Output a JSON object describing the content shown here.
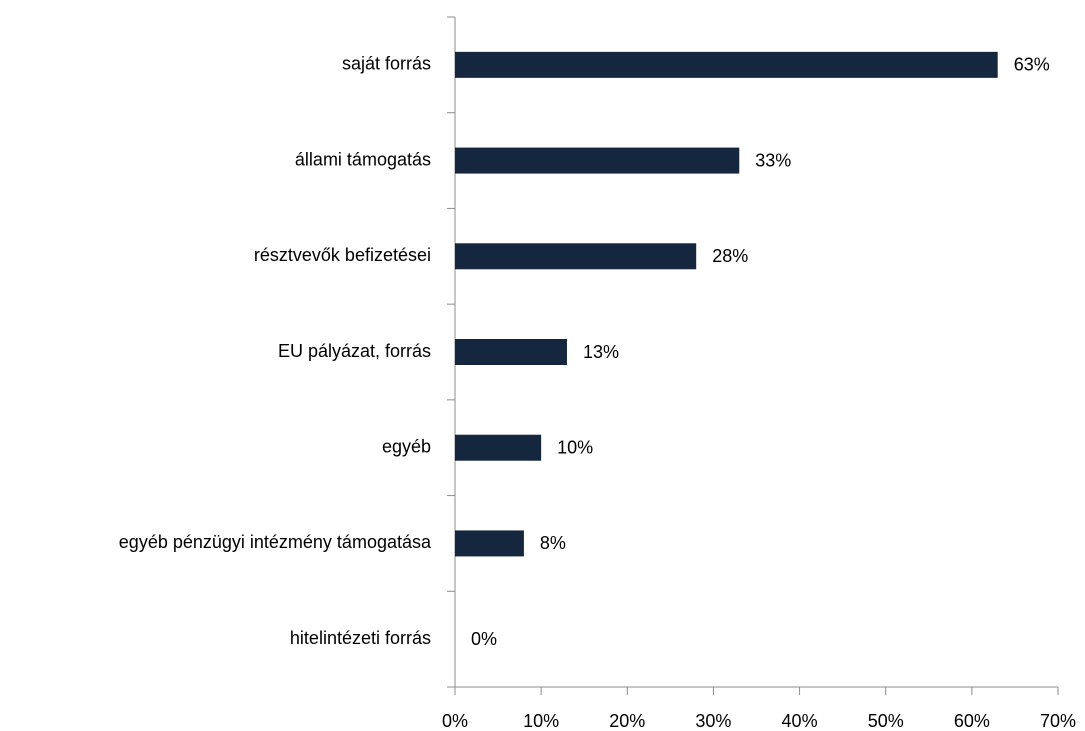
{
  "chart_data": {
    "type": "hbar",
    "categories": [
      "saját forrás",
      "állami támogatás",
      "résztvevők befizetései",
      "EU pályázat, forrás",
      "egyéb",
      "egyéb pénzügyi intézmény támogatása",
      "hitelintézeti forrás"
    ],
    "values": [
      63,
      33,
      28,
      13,
      10,
      8,
      0
    ],
    "value_labels": [
      "63%",
      "33%",
      "28%",
      "13%",
      "10%",
      "8%",
      "0%"
    ],
    "color": "#14273f",
    "xlim": [
      0,
      70
    ],
    "xticks": [
      {
        "value": 0,
        "label": "0%"
      },
      {
        "value": 10,
        "label": "10%"
      },
      {
        "value": 20,
        "label": "20%"
      },
      {
        "value": 30,
        "label": "30%"
      },
      {
        "value": 40,
        "label": "40%"
      },
      {
        "value": 50,
        "label": "50%"
      },
      {
        "value": 60,
        "label": "60%"
      },
      {
        "value": 70,
        "label": "70%"
      }
    ],
    "grid": false
  }
}
